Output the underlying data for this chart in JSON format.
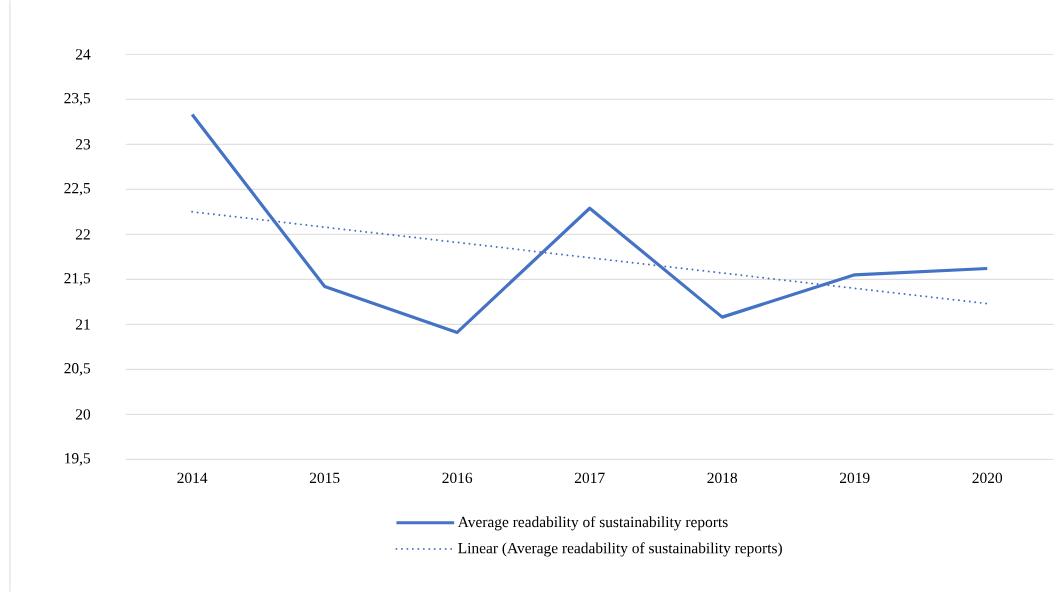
{
  "chart_data": {
    "type": "line",
    "categories": [
      "2014",
      "2015",
      "2016",
      "2017",
      "2018",
      "2019",
      "2020"
    ],
    "series": [
      {
        "name": "Average readability of sustainability reports",
        "color": "#4472c4",
        "line_style": "solid",
        "values": [
          23.33,
          21.42,
          20.91,
          22.29,
          21.08,
          21.55,
          21.62
        ]
      },
      {
        "name": "Linear (Average readability of sustainability reports)",
        "type": "line",
        "color": "#4472c4",
        "line_style": "dotted",
        "values": [
          22.25,
          22.08,
          21.91,
          21.74,
          21.57,
          21.4,
          21.23
        ]
      }
    ],
    "ylim": [
      19.5,
      24
    ],
    "yticks": [
      {
        "value": 19.5,
        "label": "19,5"
      },
      20,
      {
        "value": 20.5,
        "label": "20,5"
      },
      21,
      {
        "value": 21.5,
        "label": "21,5"
      },
      22,
      {
        "value": 22.5,
        "label": "22,5"
      },
      23,
      {
        "value": 23.5,
        "label": "23,5"
      },
      24
    ],
    "grid": "y",
    "legend": "bottom"
  }
}
